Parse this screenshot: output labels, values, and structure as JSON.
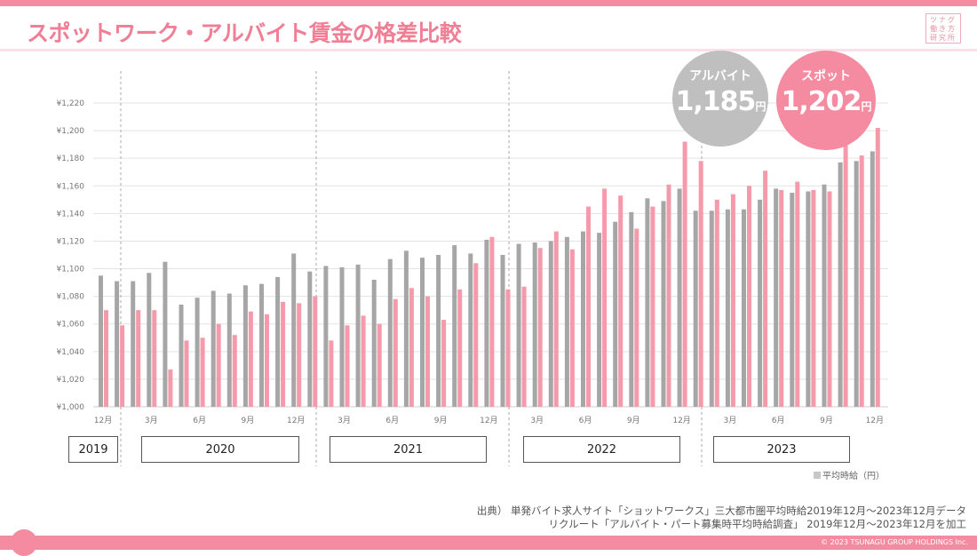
{
  "title": "スポットワーク・アルバイト賃金の格差比較",
  "logo": [
    "ツナグ",
    "働き方",
    "研究所"
  ],
  "badges": {
    "arubaito": {
      "label": "アルバイト",
      "value": "1,185",
      "unit": "円",
      "color": "#bfbfbf"
    },
    "spot": {
      "label": "スポット",
      "value": "1,202",
      "unit": "円",
      "color": "#f48ba0"
    }
  },
  "years": [
    "2019",
    "2020",
    "2021",
    "2022",
    "2023"
  ],
  "legend": "平均時給（円）",
  "source": [
    "出典） 単発バイト求人サイト「ショットワークス」三大都市圏平均時給2019年12月～2023年12月データ",
    "リクルート「アルバイト・パート募集時平均時給調査」 2019年12月～2023年12月を加工"
  ],
  "copyright": "© 2023 TSUNAGU GROUP HOLDINGS Inc.",
  "chart_data": {
    "type": "bar",
    "ylim": [
      1000,
      1220
    ],
    "yticks": [
      "¥1,000",
      "¥1,020",
      "¥1,040",
      "¥1,060",
      "¥1,080",
      "¥1,100",
      "¥1,120",
      "¥1,140",
      "¥1,160",
      "¥1,180",
      "¥1,200",
      "¥1,220"
    ],
    "grid": true,
    "categories": [
      "2019-12",
      "2020-01",
      "2020-02",
      "2020-03",
      "2020-04",
      "2020-05",
      "2020-06",
      "2020-07",
      "2020-08",
      "2020-09",
      "2020-10",
      "2020-11",
      "2020-12",
      "2021-01",
      "2021-02",
      "2021-03",
      "2021-04",
      "2021-05",
      "2021-06",
      "2021-07",
      "2021-08",
      "2021-09",
      "2021-10",
      "2021-11",
      "2021-12",
      "2022-01",
      "2022-02",
      "2022-03",
      "2022-04",
      "2022-05",
      "2022-06",
      "2022-07",
      "2022-08",
      "2022-09",
      "2022-10",
      "2022-11",
      "2022-12",
      "2023-01",
      "2023-02",
      "2023-03",
      "2023-04",
      "2023-05",
      "2023-06",
      "2023-07",
      "2023-08",
      "2023-09",
      "2023-10",
      "2023-11",
      "2023-12"
    ],
    "xtick_labels": [
      "12月",
      "3月",
      "6月",
      "9月",
      "12月",
      "3月",
      "6月",
      "9月",
      "12月",
      "3月",
      "6月",
      "9月",
      "12月",
      "3月",
      "6月",
      "9月",
      "12月"
    ],
    "series": [
      {
        "name": "アルバイト",
        "color": "#a6a6a6",
        "values": [
          1095,
          1091,
          1091,
          1097,
          1105,
          1074,
          1079,
          1084,
          1082,
          1088,
          1089,
          1094,
          1111,
          1098,
          1102,
          1101,
          1103,
          1092,
          1107,
          1113,
          1108,
          1110,
          1117,
          1111,
          1121,
          1110,
          1118,
          1119,
          1120,
          1123,
          1127,
          1126,
          1134,
          1141,
          1151,
          1149,
          1158,
          1142,
          1142,
          1143,
          1143,
          1150,
          1158,
          1155,
          1156,
          1161,
          1177,
          1178,
          1185
        ]
      },
      {
        "name": "スポット",
        "color": "#f59aab",
        "values": [
          1070,
          1059,
          1070,
          1070,
          1027,
          1048,
          1050,
          1060,
          1052,
          1069,
          1067,
          1076,
          1075,
          1080,
          1048,
          1059,
          1066,
          1060,
          1078,
          1086,
          1080,
          1063,
          1085,
          1104,
          1123,
          1085,
          1087,
          1115,
          1127,
          1114,
          1145,
          1158,
          1153,
          1129,
          1145,
          1161,
          1192,
          1178,
          1150,
          1154,
          1160,
          1171,
          1157,
          1163,
          1157,
          1156,
          1200,
          1182,
          1202
        ]
      }
    ]
  }
}
